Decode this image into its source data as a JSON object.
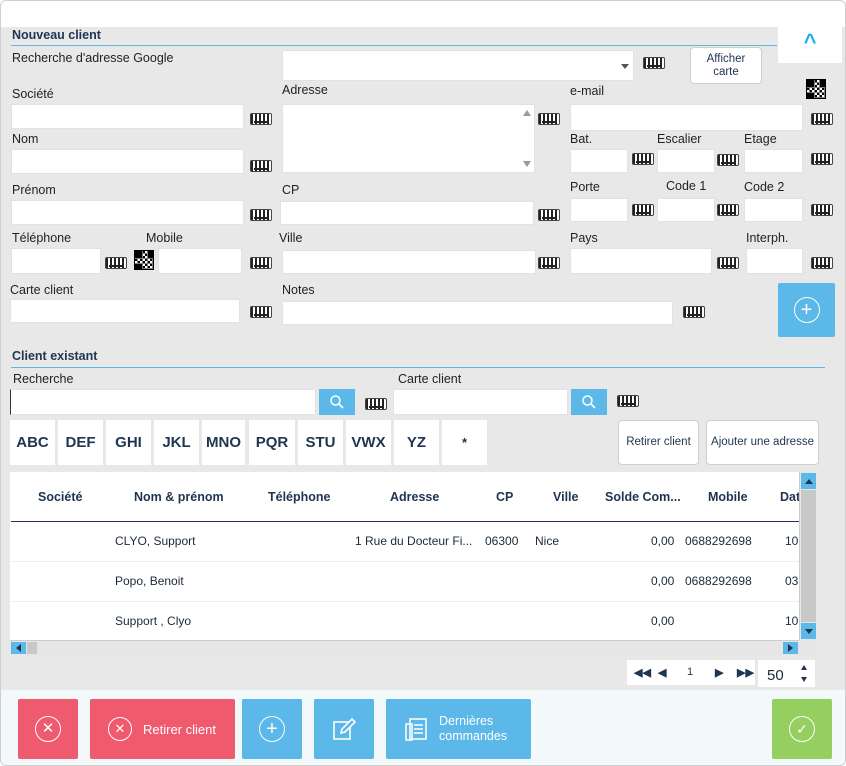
{
  "nouveau_client": {
    "title": "Nouveau client",
    "google_search_label": "Recherche d'adresse Google",
    "afficher_carte": "Afficher carte",
    "societe": "Société",
    "adresse": "Adresse",
    "email": "e-mail",
    "nom": "Nom",
    "bat": "Bat.",
    "escalier": "Escalier",
    "etage": "Etage",
    "prenom": "Prénom",
    "cp": "CP",
    "porte": "Porte",
    "code1": "Code 1",
    "code2": "Code 2",
    "telephone": "Téléphone",
    "mobile": "Mobile",
    "ville": "Ville",
    "pays": "Pays",
    "interph": "Interph.",
    "carte_client": "Carte client",
    "notes": "Notes",
    "collapse_glyph": "^"
  },
  "client_existant": {
    "title": "Client existant",
    "recherche": "Recherche",
    "carte_client": "Carte client",
    "alphabet": [
      "ABC",
      "DEF",
      "GHI",
      "JKL",
      "MNO",
      "PQR",
      "STU",
      "VWX",
      "YZ",
      "*"
    ],
    "retirer_client": "Retirer client",
    "ajouter_adresse": "Ajouter une adresse"
  },
  "table": {
    "headers": [
      "Société",
      "Nom & prénom",
      "Téléphone",
      "Adresse",
      "CP",
      "Ville",
      "Solde Com...",
      "Mobile",
      "Dat"
    ],
    "rows": [
      {
        "nom": "CLYO, Support",
        "adresse": "1 Rue du Docteur Fi...",
        "cp": "06300",
        "ville": "Nice",
        "solde": "0,00",
        "mobile": "0688292698",
        "date": "10"
      },
      {
        "nom": "Popo, Benoit",
        "adresse": "",
        "cp": "",
        "ville": "",
        "solde": "0,00",
        "mobile": "0688292698",
        "date": "03"
      },
      {
        "nom": "Support , Clyo",
        "adresse": "",
        "cp": "",
        "ville": "",
        "solde": "0,00",
        "mobile": "",
        "date": "10"
      }
    ]
  },
  "pagination": {
    "page": "1",
    "page_size": "50"
  },
  "footer": {
    "retirer_client": "Retirer client",
    "dernieres_commandes_1": "Dernières",
    "dernieres_commandes_2": "commandes"
  },
  "colors": {
    "accent": "#5bb8e8",
    "danger": "#ef5a6e",
    "success": "#94cf5f"
  }
}
